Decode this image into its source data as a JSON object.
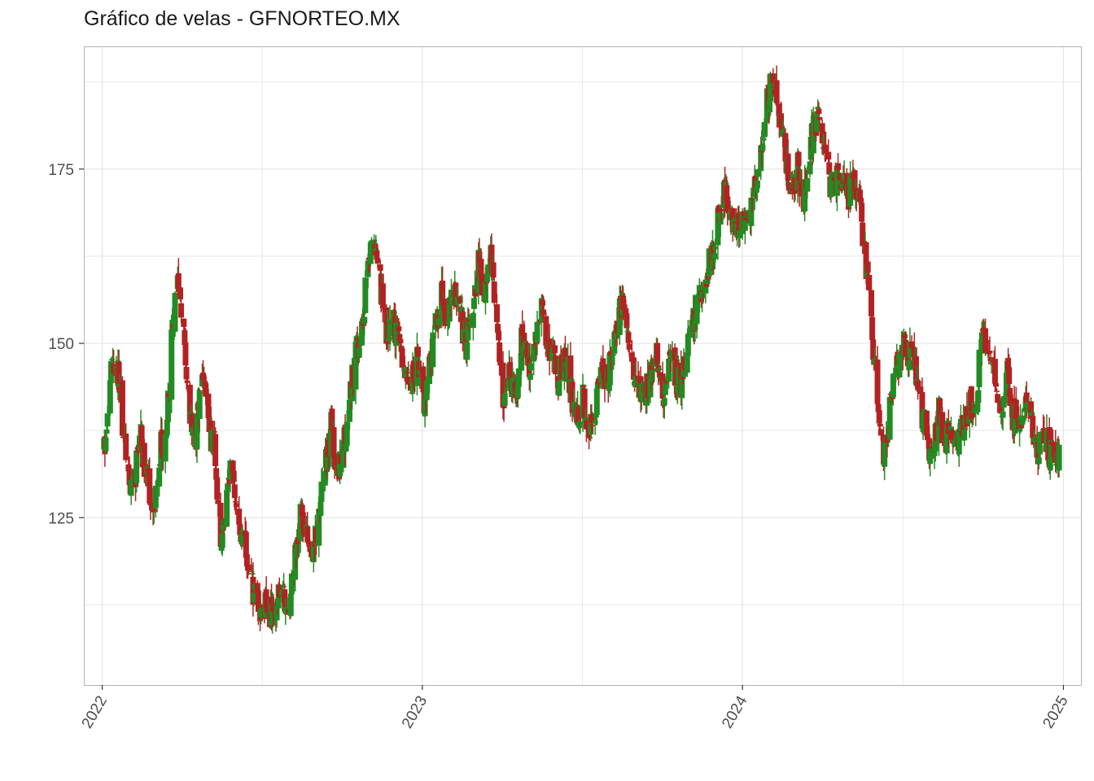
{
  "chart_data": {
    "type": "candlestick",
    "title": "Gráfico de velas - GFNORTEO.MX",
    "xlabel": "",
    "ylabel": "",
    "xlim": [
      "2021-12-11",
      "2025-01-21"
    ],
    "ylim": [
      101,
      192.6
    ],
    "y_ticks": [
      125,
      150,
      175
    ],
    "x_ticks": [
      {
        "date": "2022-01-01",
        "label": "2022"
      },
      {
        "date": "2023-01-01",
        "label": "2023"
      },
      {
        "date": "2024-01-01",
        "label": "2024"
      },
      {
        "date": "2025-01-01",
        "label": "2025"
      }
    ],
    "grid": true,
    "colors": {
      "up": "#228B22",
      "down": "#B22222",
      "grid": "#e5e5e5",
      "border": "#b3b3b3",
      "axis": "#333333"
    },
    "weekly_closes": [
      [
        "2022-01-03",
        134.5
      ],
      [
        "2022-01-10",
        146
      ],
      [
        "2022-01-17",
        148
      ],
      [
        "2022-01-24",
        138
      ],
      [
        "2022-01-31",
        130
      ],
      [
        "2022-02-07",
        131
      ],
      [
        "2022-02-14",
        136
      ],
      [
        "2022-02-21",
        131
      ],
      [
        "2022-02-28",
        126
      ],
      [
        "2022-03-07",
        134
      ],
      [
        "2022-03-14",
        137
      ],
      [
        "2022-03-21",
        150
      ],
      [
        "2022-03-28",
        160
      ],
      [
        "2022-04-04",
        150
      ],
      [
        "2022-04-11",
        139
      ],
      [
        "2022-04-18",
        137
      ],
      [
        "2022-04-25",
        147
      ],
      [
        "2022-05-02",
        138
      ],
      [
        "2022-05-09",
        135
      ],
      [
        "2022-05-16",
        122
      ],
      [
        "2022-05-23",
        130
      ],
      [
        "2022-05-30",
        132
      ],
      [
        "2022-06-06",
        124
      ],
      [
        "2022-06-13",
        120
      ],
      [
        "2022-06-20",
        116
      ],
      [
        "2022-06-27",
        112
      ],
      [
        "2022-07-04",
        113
      ],
      [
        "2022-07-11",
        111
      ],
      [
        "2022-07-18",
        113
      ],
      [
        "2022-07-25",
        115
      ],
      [
        "2022-08-01",
        111
      ],
      [
        "2022-08-08",
        118
      ],
      [
        "2022-08-15",
        126
      ],
      [
        "2022-08-22",
        122
      ],
      [
        "2022-08-29",
        120
      ],
      [
        "2022-09-05",
        125
      ],
      [
        "2022-09-12",
        132
      ],
      [
        "2022-09-19",
        138
      ],
      [
        "2022-09-26",
        130
      ],
      [
        "2022-10-03",
        135
      ],
      [
        "2022-10-10",
        142
      ],
      [
        "2022-10-17",
        148
      ],
      [
        "2022-10-24",
        152
      ],
      [
        "2022-10-31",
        162
      ],
      [
        "2022-11-07",
        166
      ],
      [
        "2022-11-14",
        158
      ],
      [
        "2022-11-21",
        150
      ],
      [
        "2022-11-28",
        154
      ],
      [
        "2022-12-05",
        150
      ],
      [
        "2022-12-12",
        146
      ],
      [
        "2022-12-19",
        144
      ],
      [
        "2022-12-26",
        148
      ],
      [
        "2023-01-02",
        141
      ],
      [
        "2023-01-09",
        146
      ],
      [
        "2023-01-16",
        152
      ],
      [
        "2023-01-23",
        157
      ],
      [
        "2023-01-30",
        153
      ],
      [
        "2023-02-06",
        158
      ],
      [
        "2023-02-13",
        154
      ],
      [
        "2023-02-20",
        150
      ],
      [
        "2023-02-27",
        155
      ],
      [
        "2023-03-06",
        162
      ],
      [
        "2023-03-13",
        157
      ],
      [
        "2023-03-20",
        162
      ],
      [
        "2023-03-27",
        153
      ],
      [
        "2023-04-03",
        140
      ],
      [
        "2023-04-10",
        145
      ],
      [
        "2023-04-17",
        142
      ],
      [
        "2023-04-24",
        150
      ],
      [
        "2023-05-01",
        146
      ],
      [
        "2023-05-08",
        148
      ],
      [
        "2023-05-15",
        155
      ],
      [
        "2023-05-22",
        152
      ],
      [
        "2023-05-29",
        148
      ],
      [
        "2023-06-05",
        145
      ],
      [
        "2023-06-12",
        149
      ],
      [
        "2023-06-19",
        143
      ],
      [
        "2023-06-26",
        139
      ],
      [
        "2023-07-03",
        143
      ],
      [
        "2023-07-10",
        137
      ],
      [
        "2023-07-17",
        141
      ],
      [
        "2023-07-24",
        147
      ],
      [
        "2023-07-31",
        145
      ],
      [
        "2023-08-07",
        148
      ],
      [
        "2023-08-14",
        157
      ],
      [
        "2023-08-21",
        152
      ],
      [
        "2023-08-28",
        147
      ],
      [
        "2023-09-04",
        145
      ],
      [
        "2023-09-11",
        143
      ],
      [
        "2023-09-18",
        145
      ],
      [
        "2023-09-25",
        148
      ],
      [
        "2023-10-02",
        142
      ],
      [
        "2023-10-09",
        150
      ],
      [
        "2023-10-16",
        146
      ],
      [
        "2023-10-23",
        143
      ],
      [
        "2023-10-30",
        150
      ],
      [
        "2023-11-06",
        153
      ],
      [
        "2023-11-13",
        157
      ],
      [
        "2023-11-20",
        160
      ],
      [
        "2023-11-27",
        162
      ],
      [
        "2023-12-04",
        168
      ],
      [
        "2023-12-11",
        172
      ],
      [
        "2023-12-18",
        168
      ],
      [
        "2023-12-25",
        165
      ],
      [
        "2024-01-01",
        170
      ],
      [
        "2024-01-08",
        166
      ],
      [
        "2024-01-15",
        172
      ],
      [
        "2024-01-22",
        178
      ],
      [
        "2024-01-29",
        185
      ],
      [
        "2024-02-05",
        188
      ],
      [
        "2024-02-12",
        182
      ],
      [
        "2024-02-19",
        176
      ],
      [
        "2024-02-26",
        172
      ],
      [
        "2024-03-04",
        175
      ],
      [
        "2024-03-11",
        170
      ],
      [
        "2024-03-18",
        178
      ],
      [
        "2024-03-25",
        182
      ],
      [
        "2024-04-01",
        180
      ],
      [
        "2024-04-08",
        174
      ],
      [
        "2024-04-15",
        172
      ],
      [
        "2024-04-22",
        175
      ],
      [
        "2024-04-29",
        170
      ],
      [
        "2024-05-06",
        174
      ],
      [
        "2024-05-13",
        170
      ],
      [
        "2024-05-20",
        162
      ],
      [
        "2024-05-27",
        154
      ],
      [
        "2024-06-03",
        140
      ],
      [
        "2024-06-10",
        133
      ],
      [
        "2024-06-17",
        140
      ],
      [
        "2024-06-24",
        146
      ],
      [
        "2024-07-01",
        150
      ],
      [
        "2024-07-08",
        148
      ],
      [
        "2024-07-15",
        148
      ],
      [
        "2024-07-22",
        142
      ],
      [
        "2024-07-29",
        136
      ],
      [
        "2024-08-05",
        134
      ],
      [
        "2024-08-12",
        140
      ],
      [
        "2024-08-19",
        136
      ],
      [
        "2024-08-26",
        138
      ],
      [
        "2024-09-02",
        135
      ],
      [
        "2024-09-09",
        138
      ],
      [
        "2024-09-16",
        142
      ],
      [
        "2024-09-23",
        140
      ],
      [
        "2024-09-30",
        152
      ],
      [
        "2024-10-07",
        148
      ],
      [
        "2024-10-14",
        145
      ],
      [
        "2024-10-21",
        140
      ],
      [
        "2024-10-28",
        146
      ],
      [
        "2024-11-04",
        140
      ],
      [
        "2024-11-11",
        138
      ],
      [
        "2024-11-18",
        143
      ],
      [
        "2024-11-25",
        140
      ],
      [
        "2024-12-02",
        134
      ],
      [
        "2024-12-09",
        138
      ],
      [
        "2024-12-16",
        134
      ],
      [
        "2024-12-23",
        134.5
      ]
    ]
  }
}
